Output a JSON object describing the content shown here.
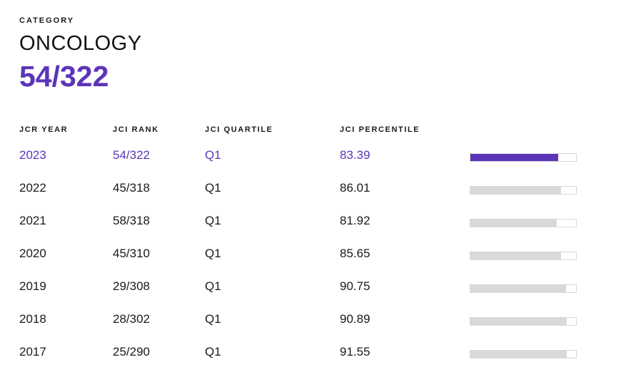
{
  "header": {
    "category_label": "CATEGORY",
    "category_name": "ONCOLOGY",
    "category_rank": "54/322"
  },
  "table": {
    "columns": [
      "JCR YEAR",
      "JCI RANK",
      "JCI QUARTILE",
      "JCI PERCENTILE"
    ],
    "rows": [
      {
        "year": "2023",
        "rank": "54/322",
        "quartile": "Q1",
        "percentile": "83.39",
        "percentile_value": 83.39,
        "current": true
      },
      {
        "year": "2022",
        "rank": "45/318",
        "quartile": "Q1",
        "percentile": "86.01",
        "percentile_value": 86.01,
        "current": false
      },
      {
        "year": "2021",
        "rank": "58/318",
        "quartile": "Q1",
        "percentile": "81.92",
        "percentile_value": 81.92,
        "current": false
      },
      {
        "year": "2020",
        "rank": "45/310",
        "quartile": "Q1",
        "percentile": "85.65",
        "percentile_value": 85.65,
        "current": false
      },
      {
        "year": "2019",
        "rank": "29/308",
        "quartile": "Q1",
        "percentile": "90.75",
        "percentile_value": 90.75,
        "current": false
      },
      {
        "year": "2018",
        "rank": "28/302",
        "quartile": "Q1",
        "percentile": "90.89",
        "percentile_value": 90.89,
        "current": false
      },
      {
        "year": "2017",
        "rank": "25/290",
        "quartile": "Q1",
        "percentile": "91.55",
        "percentile_value": 91.55,
        "current": false
      }
    ]
  },
  "colors": {
    "accent": "#5b35b8",
    "bar_inactive": "#d9d9d9",
    "bar_border": "#d8d8d8"
  }
}
